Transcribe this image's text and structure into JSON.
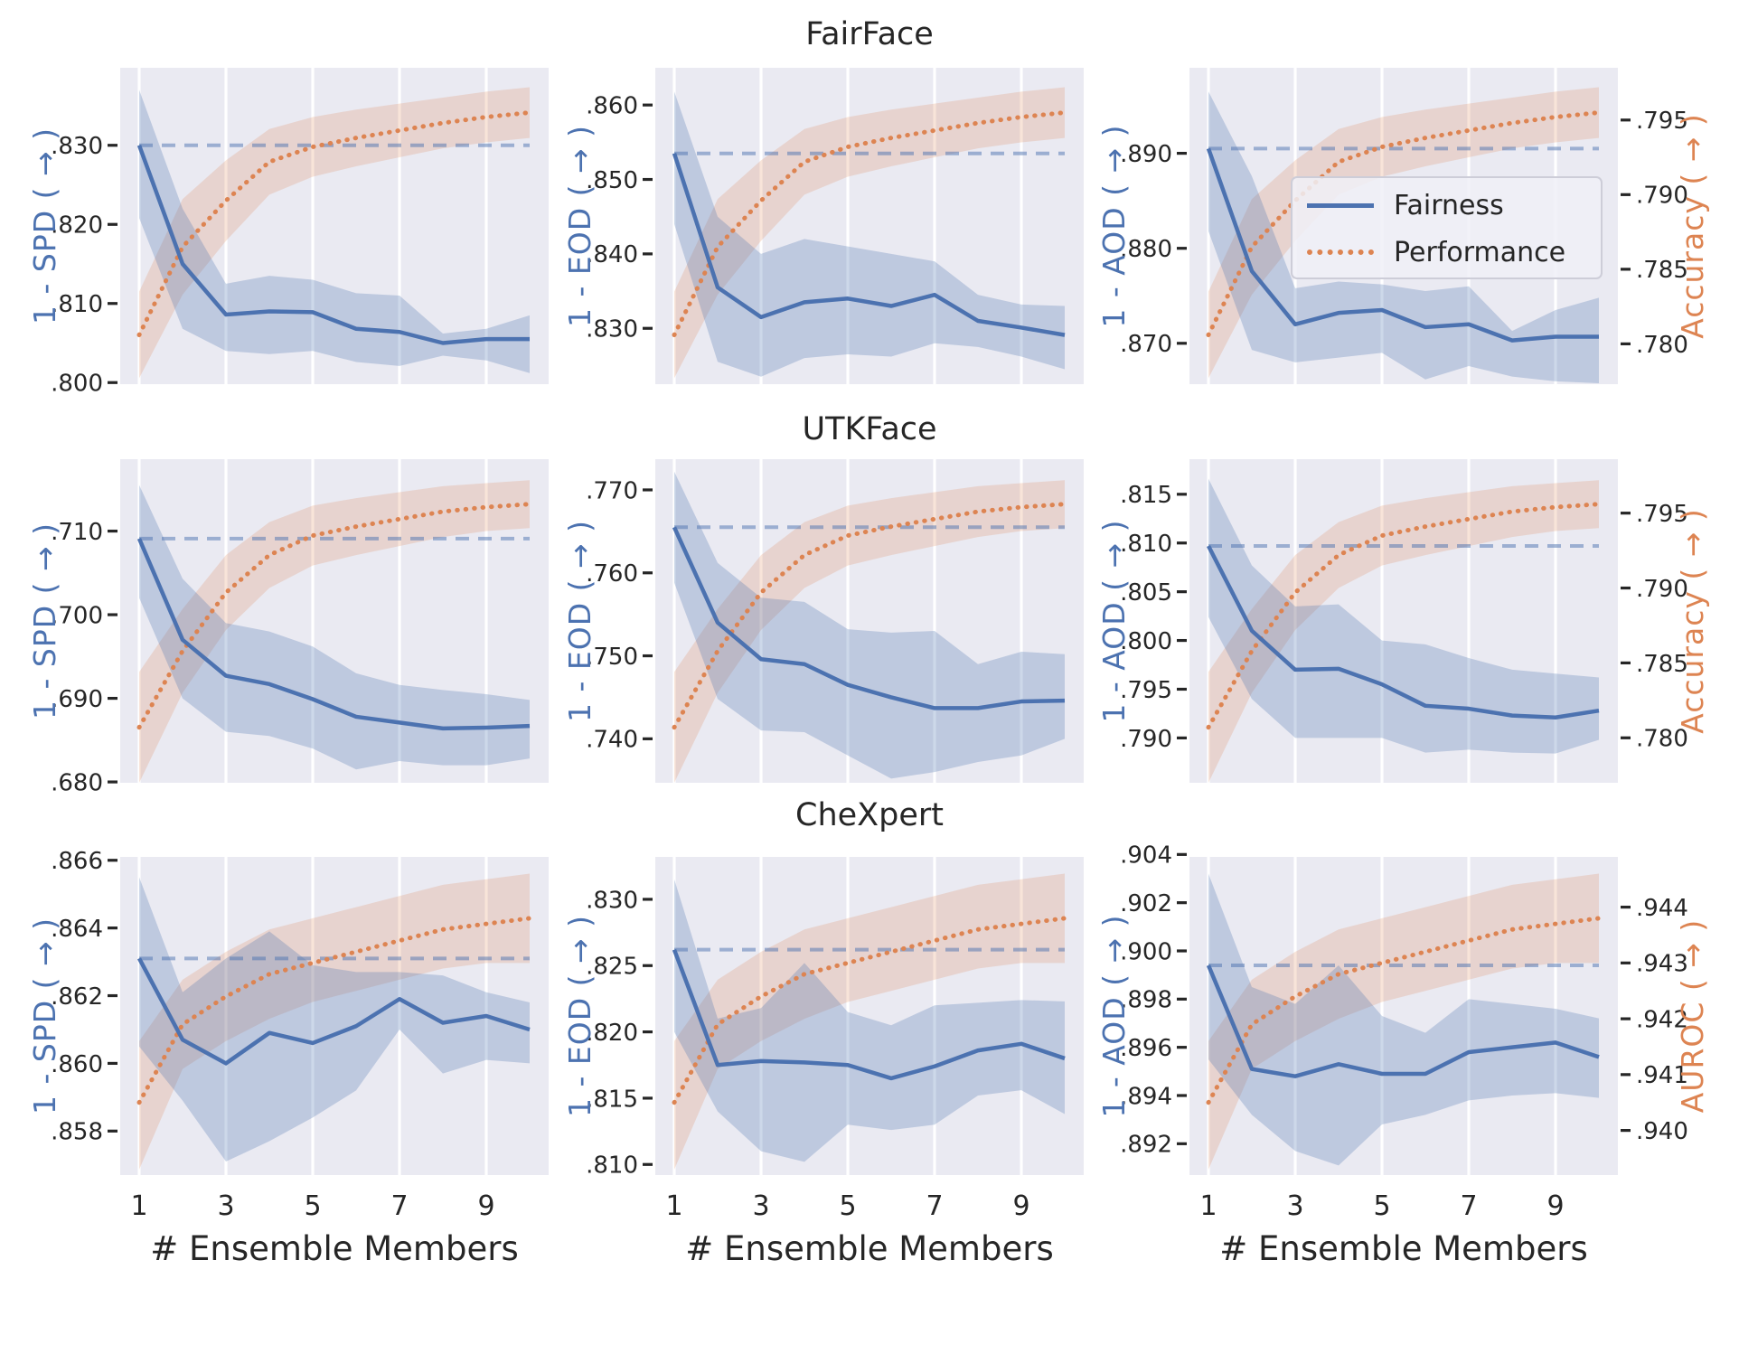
{
  "chart_data": {
    "type": "line",
    "xlabel": "# Ensemble Members",
    "x": [
      1,
      2,
      3,
      4,
      5,
      6,
      7,
      8,
      9,
      10
    ],
    "x_tick_values": [
      1,
      3,
      5,
      7,
      9
    ],
    "x_tick_labels": [
      "1",
      "3",
      "5",
      "7",
      "9"
    ],
    "grid": "vertical white gridlines at odd x ticks",
    "legend": {
      "items": [
        {
          "label": "Fairness",
          "style": "solid",
          "color": "#4C72B0"
        },
        {
          "label": "Performance",
          "style": "dotted",
          "color": "#DD8452"
        }
      ],
      "position": "inside top-right subplot"
    },
    "colors": {
      "fairness_line": "#4C72B0",
      "performance_line": "#DD8452",
      "baseline_dashed": "rgba(76,114,176,0.5)",
      "fairness_band": "rgba(76,114,176,0.28)",
      "performance_band": "rgba(221,132,82,0.22)",
      "plot_background": "#EAEAF2",
      "tick_text": "#262626"
    },
    "rows": [
      {
        "title": "FairFace",
        "performance": {
          "axis_label": "Accuracy ( → )",
          "ylim": [
            0.7773,
            0.7985
          ],
          "tick_values": [
            0.78,
            0.785,
            0.79,
            0.795
          ],
          "tick_labels": [
            ".780",
            ".785",
            ".790",
            ".795"
          ],
          "values": [
            0.7806,
            0.7865,
            0.7896,
            0.7922,
            0.7932,
            0.7938,
            0.7943,
            0.7948,
            0.7952,
            0.7955
          ],
          "band_lower": [
            0.7777,
            0.7833,
            0.7869,
            0.79,
            0.7912,
            0.7919,
            0.7925,
            0.7931,
            0.7935,
            0.7938
          ],
          "band_upper": [
            0.7835,
            0.7897,
            0.7923,
            0.7944,
            0.7952,
            0.7957,
            0.7961,
            0.7965,
            0.7969,
            0.7972
          ]
        },
        "charts": [
          {
            "ylabel": "1 - SPD ( → )",
            "ylim": [
              0.7998,
              0.8398
            ],
            "tick_values": [
              0.8,
              0.81,
              0.82,
              0.83
            ],
            "tick_labels": [
              ".800",
              ".810",
              ".820",
              ".830"
            ],
            "baseline": 0.83,
            "values": [
              0.83,
              0.815,
              0.8086,
              0.809,
              0.8089,
              0.8068,
              0.8064,
              0.805,
              0.8055,
              0.8055
            ],
            "band_lower": [
              0.8208,
              0.8068,
              0.804,
              0.8036,
              0.804,
              0.8026,
              0.8021,
              0.8034,
              0.8028,
              0.8012
            ],
            "band_upper": [
              0.837,
              0.822,
              0.8125,
              0.8135,
              0.813,
              0.8113,
              0.811,
              0.8062,
              0.8068,
              0.8085
            ]
          },
          {
            "ylabel": "1 - EOD ( → )",
            "ylim": [
              0.8225,
              0.865
            ],
            "tick_values": [
              0.83,
              0.84,
              0.85,
              0.86
            ],
            "tick_labels": [
              ".830",
              ".840",
              ".850",
              ".860"
            ],
            "baseline": 0.8535,
            "values": [
              0.8535,
              0.8355,
              0.8315,
              0.8335,
              0.834,
              0.833,
              0.8345,
              0.831,
              0.8301,
              0.8291
            ],
            "band_lower": [
              0.844,
              0.8255,
              0.8235,
              0.826,
              0.8265,
              0.8262,
              0.828,
              0.8275,
              0.8262,
              0.8245
            ],
            "band_upper": [
              0.8618,
              0.845,
              0.84,
              0.842,
              0.841,
              0.84,
              0.839,
              0.8345,
              0.8332,
              0.833
            ]
          },
          {
            "ylabel": "1 - AOD ( → )",
            "ylim": [
              0.8657,
              0.899
            ],
            "tick_values": [
              0.87,
              0.88,
              0.89
            ],
            "tick_labels": [
              ".870",
              ".880",
              ".890"
            ],
            "baseline": 0.8905,
            "values": [
              0.8905,
              0.8776,
              0.872,
              0.8732,
              0.8735,
              0.8717,
              0.872,
              0.8703,
              0.8707,
              0.8707
            ],
            "band_lower": [
              0.8818,
              0.8693,
              0.868,
              0.8685,
              0.869,
              0.8662,
              0.8676,
              0.8665,
              0.866,
              0.8658
            ],
            "band_upper": [
              0.8965,
              0.8876,
              0.8758,
              0.8765,
              0.8762,
              0.8755,
              0.876,
              0.8713,
              0.8735,
              0.8748
            ]
          }
        ]
      },
      {
        "title": "UTKFace",
        "performance": {
          "axis_label": "Accuracy ( → )",
          "ylim": [
            0.777,
            0.7986
          ],
          "tick_values": [
            0.78,
            0.785,
            0.79,
            0.795
          ],
          "tick_labels": [
            ".780",
            ".785",
            ".790",
            ".795"
          ],
          "values": [
            0.7807,
            0.7858,
            0.7897,
            0.7922,
            0.7935,
            0.7941,
            0.7946,
            0.7951,
            0.7954,
            0.7956
          ],
          "band_lower": [
            0.777,
            0.783,
            0.7872,
            0.79,
            0.7915,
            0.7922,
            0.7928,
            0.7934,
            0.7938,
            0.794
          ],
          "band_upper": [
            0.7844,
            0.7886,
            0.7922,
            0.7944,
            0.7955,
            0.796,
            0.7964,
            0.7968,
            0.797,
            0.7972
          ]
        },
        "charts": [
          {
            "ylabel": "1 - SPD ( → )",
            "ylim": [
              0.6799,
              0.7186
            ],
            "tick_values": [
              0.68,
              0.69,
              0.7,
              0.71
            ],
            "tick_labels": [
              ".680",
              ".690",
              ".700",
              ".710"
            ],
            "baseline": 0.7091,
            "values": [
              0.7091,
              0.697,
              0.6927,
              0.6917,
              0.6899,
              0.6878,
              0.6871,
              0.6864,
              0.6865,
              0.6867
            ],
            "band_lower": [
              0.702,
              0.69,
              0.686,
              0.6855,
              0.684,
              0.6815,
              0.6825,
              0.682,
              0.682,
              0.6828
            ],
            "band_upper": [
              0.7155,
              0.7043,
              0.699,
              0.698,
              0.6962,
              0.693,
              0.6916,
              0.691,
              0.6905,
              0.6898
            ]
          },
          {
            "ylabel": "1 - EOD ( → )",
            "ylim": [
              0.7347,
              0.7737
            ],
            "tick_values": [
              0.74,
              0.75,
              0.76,
              0.77
            ],
            "tick_labels": [
              ".740",
              ".750",
              ".760",
              ".770"
            ],
            "baseline": 0.7655,
            "values": [
              0.7655,
              0.754,
              0.7496,
              0.749,
              0.7465,
              0.745,
              0.7437,
              0.7437,
              0.7445,
              0.7446
            ],
            "band_lower": [
              0.7588,
              0.7448,
              0.741,
              0.7408,
              0.738,
              0.7352,
              0.736,
              0.7372,
              0.738,
              0.74
            ],
            "band_upper": [
              0.7722,
              0.7612,
              0.757,
              0.7565,
              0.7532,
              0.7528,
              0.753,
              0.749,
              0.7505,
              0.7502
            ]
          },
          {
            "ylabel": "1 - AOD ( → )",
            "ylim": [
              0.7854,
              0.8186
            ],
            "tick_values": [
              0.79,
              0.795,
              0.8,
              0.805,
              0.81,
              0.815
            ],
            "tick_labels": [
              ".790",
              ".795",
              ".800",
              ".805",
              ".810",
              ".815"
            ],
            "baseline": 0.8097,
            "values": [
              0.8097,
              0.801,
              0.797,
              0.7971,
              0.7955,
              0.7933,
              0.793,
              0.7923,
              0.7921,
              0.7928
            ],
            "band_lower": [
              0.8024,
              0.794,
              0.79,
              0.79,
              0.79,
              0.7885,
              0.7888,
              0.7885,
              0.7884,
              0.7898
            ],
            "band_upper": [
              0.8166,
              0.8077,
              0.8035,
              0.8037,
              0.8,
              0.7996,
              0.7982,
              0.797,
              0.7966,
              0.7962
            ]
          }
        ]
      },
      {
        "title": "CheXpert",
        "performance": {
          "axis_label": "AUROC ( → )",
          "ylim": [
            0.9392,
            0.9449
          ],
          "tick_values": [
            0.94,
            0.941,
            0.942,
            0.943,
            0.944
          ],
          "tick_labels": [
            ".940",
            ".941",
            ".942",
            ".943",
            ".944"
          ],
          "values": [
            0.9405,
            0.9419,
            0.9424,
            0.9428,
            0.943,
            0.9432,
            0.9434,
            0.9436,
            0.9437,
            0.9438
          ],
          "band_lower": [
            0.9393,
            0.9411,
            0.9416,
            0.942,
            0.9423,
            0.9425,
            0.9427,
            0.9429,
            0.943,
            0.943
          ],
          "band_upper": [
            0.9416,
            0.9427,
            0.9432,
            0.9436,
            0.9438,
            0.944,
            0.9442,
            0.9444,
            0.9445,
            0.9446
          ]
        },
        "charts": [
          {
            "ylabel": "1 - SPD ( → )",
            "ylim": [
              0.8567,
              0.8661
            ],
            "tick_values": [
              0.858,
              0.86,
              0.862,
              0.864,
              0.866
            ],
            "tick_labels": [
              ".858",
              ".860",
              ".862",
              ".864",
              ".866"
            ],
            "baseline": 0.8631,
            "values": [
              0.8631,
              0.8607,
              0.86,
              0.8609,
              0.8606,
              0.8611,
              0.8619,
              0.8612,
              0.8614,
              0.861
            ],
            "band_lower": [
              0.8605,
              0.8589,
              0.8571,
              0.8577,
              0.8584,
              0.8592,
              0.861,
              0.8597,
              0.8601,
              0.86
            ],
            "band_upper": [
              0.8655,
              0.8621,
              0.8631,
              0.8639,
              0.8629,
              0.8627,
              0.8627,
              0.8626,
              0.8621,
              0.8618
            ]
          },
          {
            "ylabel": "1 - EOD ( → )",
            "ylim": [
              0.8092,
              0.8332
            ],
            "tick_values": [
              0.81,
              0.815,
              0.82,
              0.825,
              0.83
            ],
            "tick_labels": [
              ".810",
              ".815",
              ".820",
              ".825",
              ".830"
            ],
            "baseline": 0.8262,
            "values": [
              0.8262,
              0.8175,
              0.8178,
              0.8177,
              0.8175,
              0.8165,
              0.8174,
              0.8186,
              0.8191,
              0.818
            ],
            "band_lower": [
              0.82,
              0.814,
              0.811,
              0.8102,
              0.813,
              0.8126,
              0.813,
              0.8152,
              0.8156,
              0.8138
            ],
            "band_upper": [
              0.8315,
              0.821,
              0.8218,
              0.8252,
              0.8215,
              0.8205,
              0.822,
              0.8222,
              0.8224,
              0.8223
            ]
          },
          {
            "ylabel": "1 - AOD ( → )",
            "ylim": [
              0.8907,
              0.9039
            ],
            "tick_values": [
              0.892,
              0.894,
              0.896,
              0.898,
              0.9,
              0.902,
              0.904
            ],
            "tick_labels": [
              ".892",
              ".894",
              ".896",
              ".898",
              ".900",
              ".902",
              ".904"
            ],
            "baseline": 0.8994,
            "values": [
              0.8994,
              0.8951,
              0.8948,
              0.8953,
              0.8949,
              0.8949,
              0.8958,
              0.896,
              0.8962,
              0.8956
            ],
            "band_lower": [
              0.8955,
              0.8932,
              0.8917,
              0.8911,
              0.8928,
              0.8932,
              0.8938,
              0.894,
              0.8941,
              0.8939
            ],
            "band_upper": [
              0.9032,
              0.8985,
              0.8978,
              0.8994,
              0.8973,
              0.8966,
              0.898,
              0.8978,
              0.8976,
              0.8972
            ]
          }
        ]
      }
    ]
  }
}
